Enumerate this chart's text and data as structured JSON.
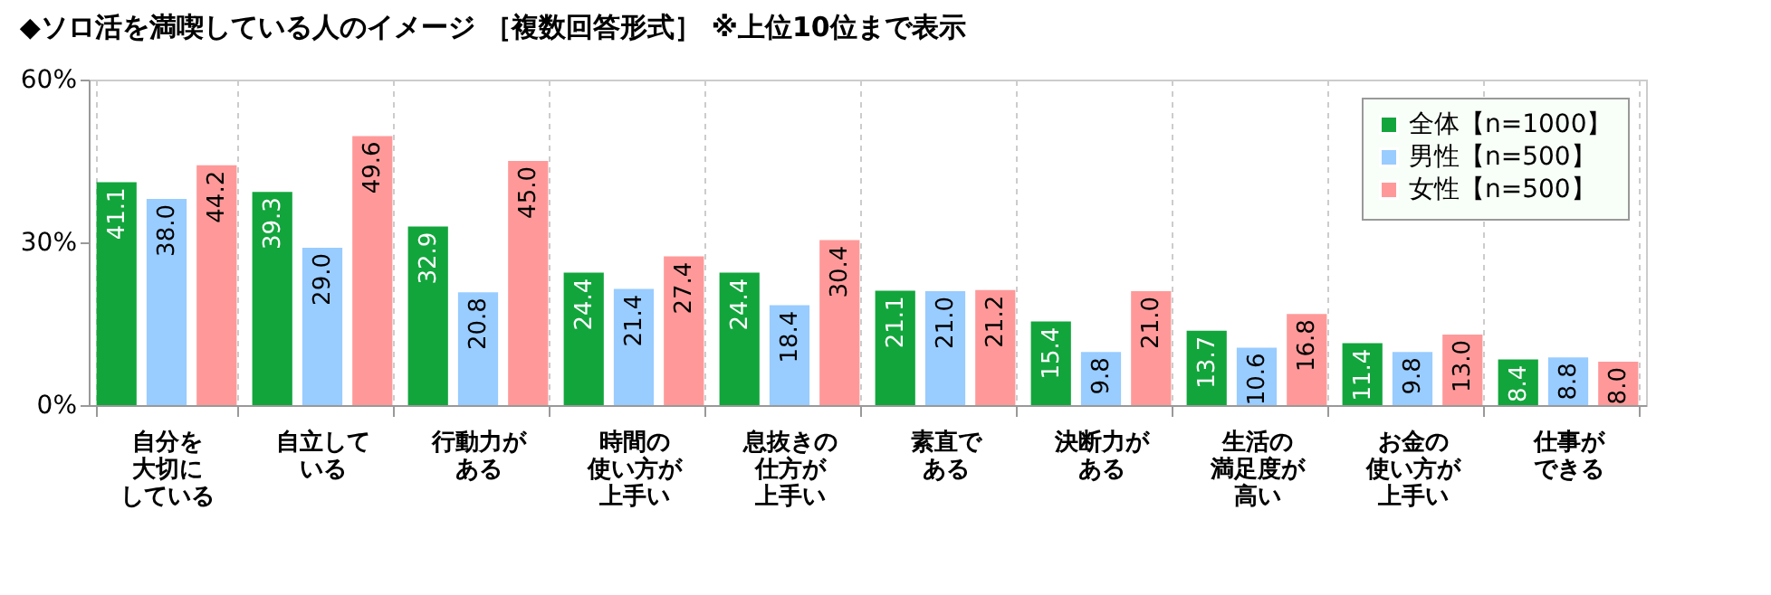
{
  "chart_data": {
    "type": "bar",
    "title": "◆ソロ活を満喫している人のイメージ ［複数回答形式］ ※上位10位まで表示",
    "categories": [
      "自分を大切にしている",
      "自立している",
      "行動力がある",
      "時間の使い方が上手い",
      "息抜きの仕方が上手い",
      "素直である",
      "決断力がある",
      "生活の満足度が高い",
      "お金の使い方が上手い",
      "仕事ができる"
    ],
    "series": [
      {
        "name": "全体【n=1000】",
        "color": "#12a53c",
        "values": [
          41.1,
          39.3,
          32.9,
          24.4,
          24.4,
          21.1,
          15.4,
          13.7,
          11.4,
          8.4
        ],
        "value_labels": [
          "41.1",
          "39.3",
          "32.9",
          "24.4",
          "24.4",
          "21.1",
          "15.4",
          "13.7",
          "11.4",
          "8.4"
        ]
      },
      {
        "name": "男性【n=500】",
        "color": "#99ccff",
        "values": [
          38.0,
          29.0,
          20.8,
          21.4,
          18.4,
          21.0,
          9.8,
          10.6,
          9.8,
          8.8
        ],
        "value_labels": [
          "38.0",
          "29.0",
          "20.8",
          "21.4",
          "18.4",
          "21.0",
          "9.8",
          "10.6",
          "9.8",
          "8.8"
        ]
      },
      {
        "name": "女性【n=500】",
        "color": "#ff9999",
        "values": [
          44.2,
          49.6,
          45.0,
          27.4,
          30.4,
          21.2,
          21.0,
          16.8,
          13.0,
          8.0
        ],
        "value_labels": [
          "44.2",
          "49.6",
          "45.0",
          "27.4",
          "30.4",
          "21.2",
          "21.0",
          "16.8",
          "13.0",
          "8.0"
        ]
      }
    ],
    "ylim": [
      0,
      60
    ],
    "yticks": [
      {
        "value": 0,
        "label": "0%"
      },
      {
        "value": 30,
        "label": "30%"
      },
      {
        "value": 60,
        "label": "60%"
      }
    ],
    "grid": "x",
    "legend": "top right"
  }
}
